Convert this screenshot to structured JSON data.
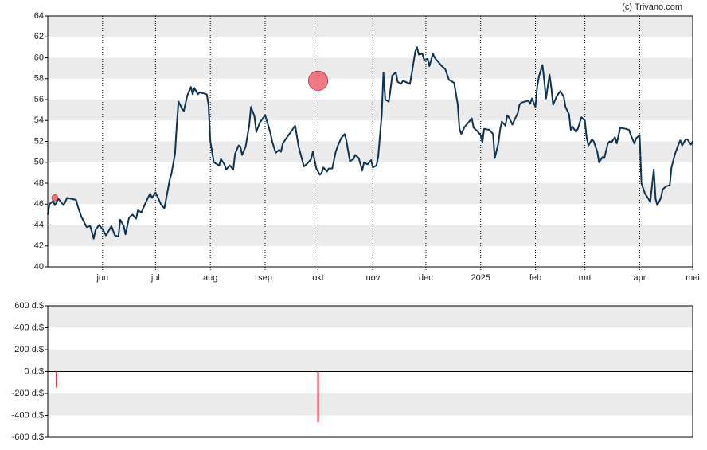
{
  "credit": "(c) Trivano.com",
  "chart_data": [
    {
      "type": "line",
      "xlim": [
        0,
        365
      ],
      "xticks": [
        {
          "value": 31,
          "label": "jun"
        },
        {
          "value": 61,
          "label": "jul"
        },
        {
          "value": 92,
          "label": "aug"
        },
        {
          "value": 123,
          "label": "sep"
        },
        {
          "value": 153,
          "label": "okt"
        },
        {
          "value": 184,
          "label": "nov"
        },
        {
          "value": 214,
          "label": "dec"
        },
        {
          "value": 245,
          "label": "2025"
        },
        {
          "value": 276,
          "label": "feb"
        },
        {
          "value": 304,
          "label": "mrt"
        },
        {
          "value": 335,
          "label": "apr"
        },
        {
          "value": 365,
          "label": "mei"
        }
      ],
      "ylim": [
        40,
        64
      ],
      "yticks": [
        40,
        42,
        44,
        46,
        48,
        50,
        52,
        54,
        56,
        58,
        60,
        62,
        64
      ],
      "grid": true,
      "x": [
        0,
        1,
        3,
        4,
        6,
        9,
        11,
        16,
        17,
        19,
        22,
        24,
        26,
        27,
        29,
        31,
        33,
        35,
        36,
        38,
        40,
        41,
        43,
        44,
        46,
        48,
        50,
        51,
        53,
        55,
        57,
        58,
        59,
        61,
        63,
        64,
        66,
        68,
        69,
        70,
        72,
        73,
        74,
        76,
        77,
        79,
        81,
        82,
        83,
        85,
        86,
        90,
        91,
        92,
        94,
        97,
        98,
        100,
        101,
        103,
        105,
        106,
        108,
        109,
        110,
        112,
        114,
        115,
        117,
        118,
        120,
        123,
        125,
        126,
        127,
        129,
        131,
        132,
        133,
        135,
        138,
        140,
        141,
        142,
        144,
        145,
        147,
        149,
        150,
        152,
        154,
        155,
        156,
        158,
        159,
        161,
        163,
        164,
        166,
        168,
        169,
        171,
        173,
        174,
        176,
        178,
        179,
        181,
        183,
        184,
        186,
        187,
        189,
        190,
        191,
        193,
        194,
        195,
        197,
        198,
        200,
        201,
        205,
        206,
        208,
        209,
        210,
        212,
        213,
        215,
        216,
        218,
        219,
        223,
        225,
        227,
        230,
        232,
        233,
        234,
        236,
        238,
        240,
        241,
        243,
        245,
        246,
        247,
        250,
        252,
        253,
        255,
        256,
        257,
        259,
        260,
        261,
        263,
        264,
        266,
        267,
        268,
        272,
        273,
        274,
        276,
        277,
        278,
        280,
        281,
        282,
        284,
        285,
        286,
        288,
        290,
        292,
        293,
        295,
        296,
        297,
        299,
        300,
        302,
        304,
        305,
        306,
        308,
        309,
        311,
        312,
        314,
        315,
        317,
        318,
        319,
        321,
        322,
        324,
        327,
        329,
        330,
        332,
        333,
        335,
        336,
        338,
        340,
        341,
        343,
        344,
        345,
        347,
        348,
        350,
        352,
        353,
        355,
        357,
        358,
        359,
        361,
        362,
        364,
        365
      ],
      "series": [
        {
          "color": "#0d3352",
          "values": [
            45.0,
            46.0,
            46.3,
            45.9,
            46.5,
            45.9,
            46.6,
            46.4,
            45.8,
            44.8,
            43.8,
            43.9,
            42.7,
            43.5,
            44.0,
            43.6,
            43.0,
            43.6,
            43.9,
            43.0,
            42.9,
            44.5,
            43.9,
            43.1,
            44.7,
            45.0,
            44.6,
            45.4,
            45.2,
            46.0,
            46.7,
            47.0,
            46.6,
            47.1,
            46.4,
            46.0,
            45.6,
            47.4,
            48.3,
            48.9,
            50.8,
            53.5,
            55.8,
            55.1,
            54.9,
            56.4,
            57.2,
            56.5,
            57.1,
            56.5,
            56.7,
            56.5,
            55.5,
            52.0,
            50.0,
            49.7,
            50.3,
            49.8,
            49.3,
            49.7,
            49.3,
            50.8,
            51.6,
            51.5,
            50.7,
            51.5,
            53.5,
            55.3,
            54.4,
            52.9,
            53.8,
            54.5,
            53.4,
            52.8,
            52.0,
            50.9,
            51.2,
            51.0,
            51.8,
            52.3,
            53.0,
            53.5,
            52.5,
            51.5,
            50.2,
            49.6,
            49.9,
            50.3,
            51.0,
            49.4,
            48.8,
            49.0,
            49.5,
            49.1,
            49.4,
            49.4,
            51.0,
            51.5,
            52.3,
            52.7,
            52.1,
            50.1,
            50.3,
            50.7,
            50.4,
            49.2,
            50.0,
            49.8,
            50.2,
            49.5,
            49.7,
            50.5,
            54.5,
            58.6,
            56.0,
            55.8,
            57.0,
            58.3,
            58.6,
            57.7,
            57.5,
            57.8,
            57.5,
            58.5,
            60.6,
            61.0,
            60.3,
            60.4,
            59.8,
            59.9,
            59.2,
            60.4,
            60.0,
            59.2,
            58.9,
            57.9,
            57.6,
            55.6,
            53.2,
            52.7,
            53.4,
            53.8,
            54.2,
            53.3,
            53.0,
            52.6,
            51.9,
            53.2,
            53.1,
            52.7,
            50.4,
            51.8,
            53.1,
            53.9,
            53.5,
            54.5,
            54.3,
            53.6,
            54.0,
            54.7,
            55.5,
            55.7,
            55.9,
            55.6,
            56.1,
            55.3,
            57.2,
            58.2,
            59.3,
            57.8,
            56.1,
            58.4,
            57.1,
            55.5,
            56.3,
            56.8,
            56.3,
            55.3,
            54.6,
            53.1,
            53.4,
            52.9,
            53.2,
            54.3,
            54.0,
            52.4,
            51.6,
            52.2,
            52.0,
            51.0,
            50.0,
            50.5,
            50.4,
            51.8,
            52.0,
            51.9,
            52.4,
            51.8,
            53.3,
            53.2,
            53.1,
            52.6,
            51.8,
            52.3,
            52.6,
            48.0,
            47.0,
            46.5,
            46.2,
            49.3,
            46.5,
            45.9,
            46.6,
            47.4,
            47.7,
            47.8,
            49.5,
            50.8,
            51.7,
            52.1,
            51.6,
            52.2,
            52.2,
            51.7,
            52.0
          ]
        }
      ],
      "markers": {
        "color": "#f06070",
        "x": [
          4,
          153
        ],
        "values": [
          46.6,
          57.8
        ]
      }
    },
    {
      "type": "bar",
      "xlim": [
        0,
        365
      ],
      "ylim": [
        -600,
        600
      ],
      "yticks": [
        {
          "value": -600,
          "label": "-600 d.$"
        },
        {
          "value": -400,
          "label": "-400 d.$"
        },
        {
          "value": -200,
          "label": "-200 d.$"
        },
        {
          "value": 0,
          "label": "0 d.$"
        },
        {
          "value": 200,
          "label": "200 d.$"
        },
        {
          "value": 400,
          "label": "400 d.$"
        },
        {
          "value": 600,
          "label": "600 d.$"
        }
      ],
      "grid": true,
      "color": "#e0203c",
      "x": [
        5,
        153
      ],
      "values": [
        -145,
        -463
      ]
    }
  ]
}
